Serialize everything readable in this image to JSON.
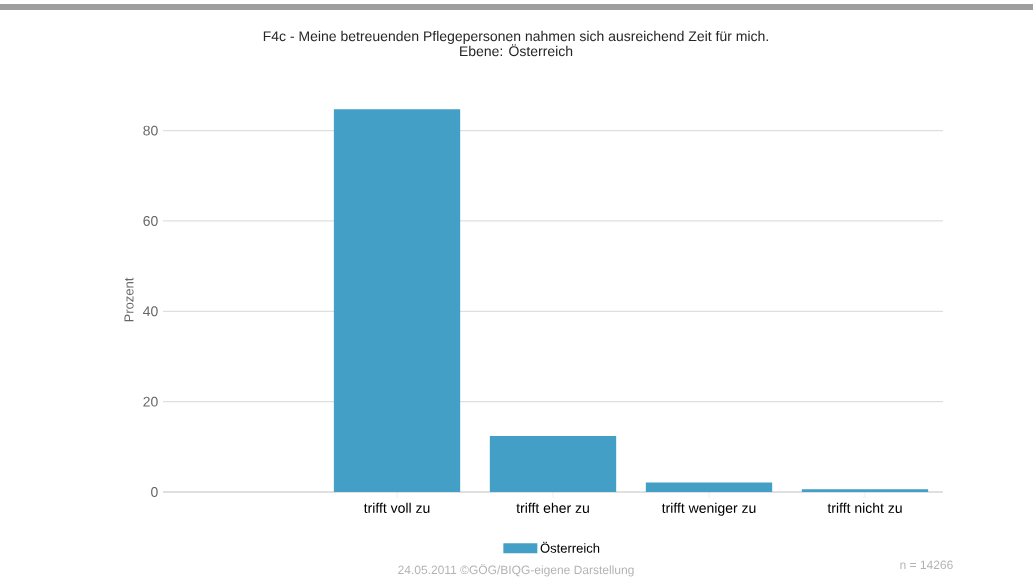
{
  "chart_data": {
    "type": "bar",
    "title": "F4c - Meine betreuenden Pflegepersonen nahmen sich ausreichend Zeit für mich.",
    "subtitle": "Ebene: Österreich",
    "ylabel": "Prozent",
    "categories": [
      null,
      "trifft voll zu",
      "trifft eher zu",
      "trifft weniger zu",
      "trifft nicht zu"
    ],
    "series": [
      {
        "name": "Österreich",
        "color": "#439fc6",
        "values": [
          null,
          84.7,
          12.4,
          2.1,
          0.6
        ]
      }
    ],
    "ylim": [
      0,
      85
    ],
    "yticks": [
      0,
      20,
      40,
      60,
      80
    ],
    "grid": "y",
    "legend": "bottom",
    "annotations": [
      "24.05.2011 ©GÖG/BIQG-eigene Darstellung",
      "n = 14266"
    ]
  }
}
